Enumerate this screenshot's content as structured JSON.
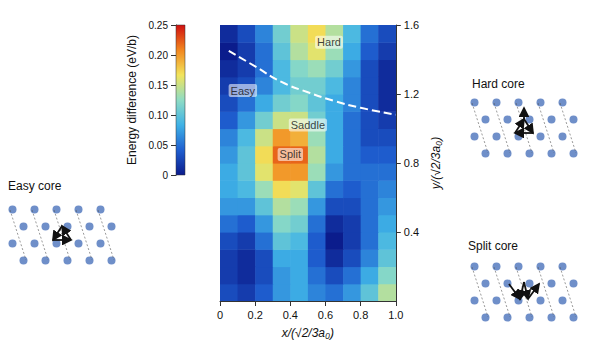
{
  "chart_data": {
    "type": "heatmap",
    "x_label": "x/(√2/3a₀)",
    "y_label": "y/(√2/3a₀)",
    "xlim": [
      0,
      1
    ],
    "xticks": [
      0,
      0.2,
      0.4,
      0.6,
      0.8,
      {
        "value": 1,
        "label": "1.0"
      }
    ],
    "ylim": [
      0,
      1.6
    ],
    "yticks": [
      0.4,
      0.8,
      1.2,
      1.6
    ],
    "x_bins": [
      0,
      0.1,
      0.2,
      0.3,
      0.4,
      0.5,
      0.6,
      0.7,
      0.8,
      0.9,
      1.0
    ],
    "y_bins": [
      0,
      0.1,
      0.2,
      0.3,
      0.4,
      0.5,
      0.6,
      0.7,
      0.8,
      0.9,
      1.0,
      1.1,
      1.2,
      1.3,
      1.4,
      1.5,
      1.6
    ],
    "cells": [
      [
        0.03,
        0.02,
        0.04,
        0.07,
        0.08,
        0.06,
        0.05,
        0.07,
        0.1,
        0.14
      ],
      [
        0.02,
        0.01,
        0.03,
        0.07,
        0.08,
        0.05,
        0.03,
        0.05,
        0.08,
        0.12
      ],
      [
        0.02,
        0.01,
        0.03,
        0.08,
        0.08,
        0.04,
        0.01,
        0.03,
        0.06,
        0.1
      ],
      [
        0.03,
        0.02,
        0.05,
        0.1,
        0.09,
        0.04,
        0.0,
        0.02,
        0.05,
        0.09
      ],
      [
        0.05,
        0.04,
        0.07,
        0.12,
        0.11,
        0.05,
        0.01,
        0.02,
        0.05,
        0.08
      ],
      [
        0.07,
        0.07,
        0.1,
        0.14,
        0.13,
        0.07,
        0.03,
        0.03,
        0.05,
        0.07
      ],
      [
        0.08,
        0.09,
        0.13,
        0.17,
        0.16,
        0.1,
        0.05,
        0.04,
        0.05,
        0.06
      ],
      [
        0.08,
        0.1,
        0.16,
        0.2,
        0.2,
        0.13,
        0.07,
        0.05,
        0.05,
        0.05
      ],
      [
        0.07,
        0.1,
        0.17,
        0.22,
        0.22,
        0.14,
        0.08,
        0.05,
        0.04,
        0.04
      ],
      [
        0.06,
        0.09,
        0.15,
        0.2,
        0.19,
        0.13,
        0.08,
        0.05,
        0.03,
        0.03
      ],
      [
        0.04,
        0.07,
        0.11,
        0.15,
        0.15,
        0.11,
        0.08,
        0.05,
        0.03,
        0.02
      ],
      [
        0.03,
        0.05,
        0.08,
        0.11,
        0.12,
        0.1,
        0.08,
        0.06,
        0.03,
        0.01
      ],
      [
        0.02,
        0.03,
        0.06,
        0.09,
        0.11,
        0.11,
        0.09,
        0.06,
        0.03,
        0.01
      ],
      [
        0.01,
        0.02,
        0.05,
        0.09,
        0.12,
        0.13,
        0.11,
        0.07,
        0.03,
        0.01
      ],
      [
        0.0,
        0.02,
        0.05,
        0.1,
        0.14,
        0.16,
        0.13,
        0.08,
        0.04,
        0.02
      ],
      [
        0.01,
        0.03,
        0.06,
        0.11,
        0.15,
        0.17,
        0.14,
        0.09,
        0.05,
        0.03
      ]
    ],
    "colorbar": {
      "label": "Energy difference (eV/b)",
      "range": [
        0,
        0.25
      ],
      "ticks": [
        0,
        0.05,
        {
          "value": 0.1,
          "label": "0.10"
        },
        0.15,
        {
          "value": 0.2,
          "label": "0.20"
        },
        0.25
      ]
    },
    "annotations": [
      {
        "text": "Easy",
        "x": 0.13,
        "y": 1.22
      },
      {
        "text": "Hard",
        "x": 0.62,
        "y": 1.5
      },
      {
        "text": "Saddle",
        "x": 0.5,
        "y": 1.02
      },
      {
        "text": "Split",
        "x": 0.4,
        "y": 0.85
      }
    ],
    "saddle_path": {
      "x": [
        0.05,
        0.2,
        0.35,
        0.5,
        0.65,
        0.8,
        1.0
      ],
      "y": [
        1.45,
        1.36,
        1.27,
        1.21,
        1.16,
        1.12,
        1.08
      ],
      "color": "#ffffff",
      "line_style": "dashed"
    }
  },
  "panels": [
    {
      "title": "Easy core"
    },
    {
      "title": "Hard core"
    },
    {
      "title": "Split core"
    }
  ]
}
